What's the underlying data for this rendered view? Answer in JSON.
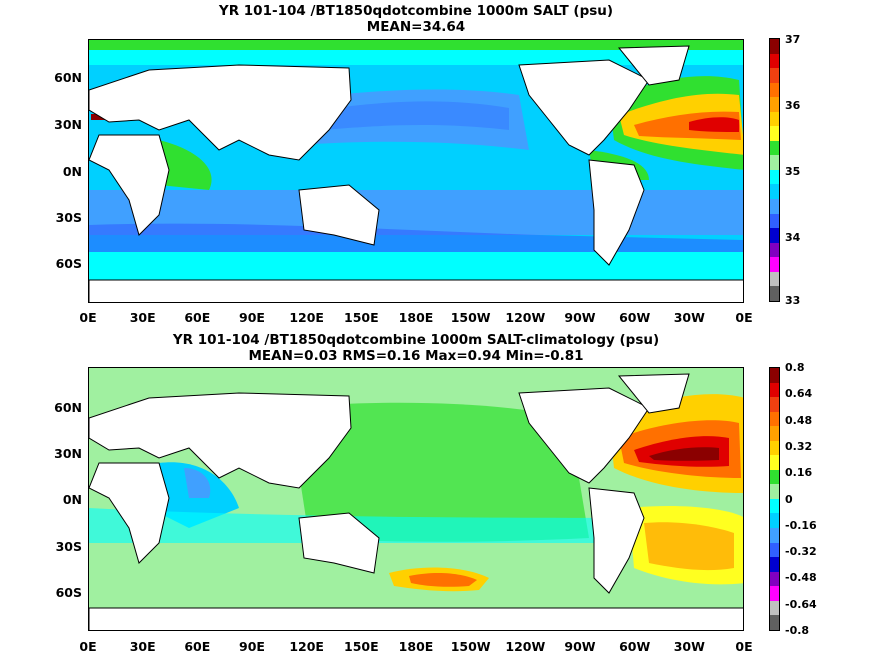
{
  "panel1": {
    "title_line1": "YR 101-104 /BT1850qdotcombine 1000m SALT (psu)",
    "title_line2": "MEAN=34.64",
    "colorbar_labels": [
      "37",
      "36",
      "35",
      "34",
      "33"
    ],
    "colors": [
      "#8b0000",
      "#e00000",
      "#f04010",
      "#ff7000",
      "#ffa000",
      "#ffd000",
      "#ffff20",
      "#30e030",
      "#a0f0a0",
      "#00ffff",
      "#00d0ff",
      "#40a0ff",
      "#3060ff",
      "#0000d0",
      "#8000c0",
      "#ff00ff",
      "#c0c0c0",
      "#606060"
    ]
  },
  "panel2": {
    "title_line1": "YR 101-104 /BT1850qdotcombine 1000m SALT-climatology (psu)",
    "title_line2": "MEAN=0.03   RMS=0.16   Max=0.94   Min=-0.81",
    "colorbar_labels": [
      "0.8",
      "0.64",
      "0.48",
      "0.32",
      "0.16",
      "0",
      "-0.16",
      "-0.32",
      "-0.48",
      "-0.64",
      "-0.8"
    ],
    "colors": [
      "#8b0000",
      "#e00000",
      "#f04010",
      "#ff7000",
      "#ffa000",
      "#ffd000",
      "#ffff20",
      "#30e030",
      "#a0f0a0",
      "#00ffff",
      "#00d0ff",
      "#40a0ff",
      "#3060ff",
      "#0000d0",
      "#8000c0",
      "#ff00ff",
      "#c0c0c0",
      "#606060"
    ]
  },
  "axes": {
    "lat_labels": [
      "60N",
      "30N",
      "0N",
      "30S",
      "60S"
    ],
    "lon_labels": [
      "0E",
      "30E",
      "60E",
      "90E",
      "120E",
      "150E",
      "180E",
      "150W",
      "120W",
      "90W",
      "60W",
      "30W",
      "0E"
    ]
  }
}
